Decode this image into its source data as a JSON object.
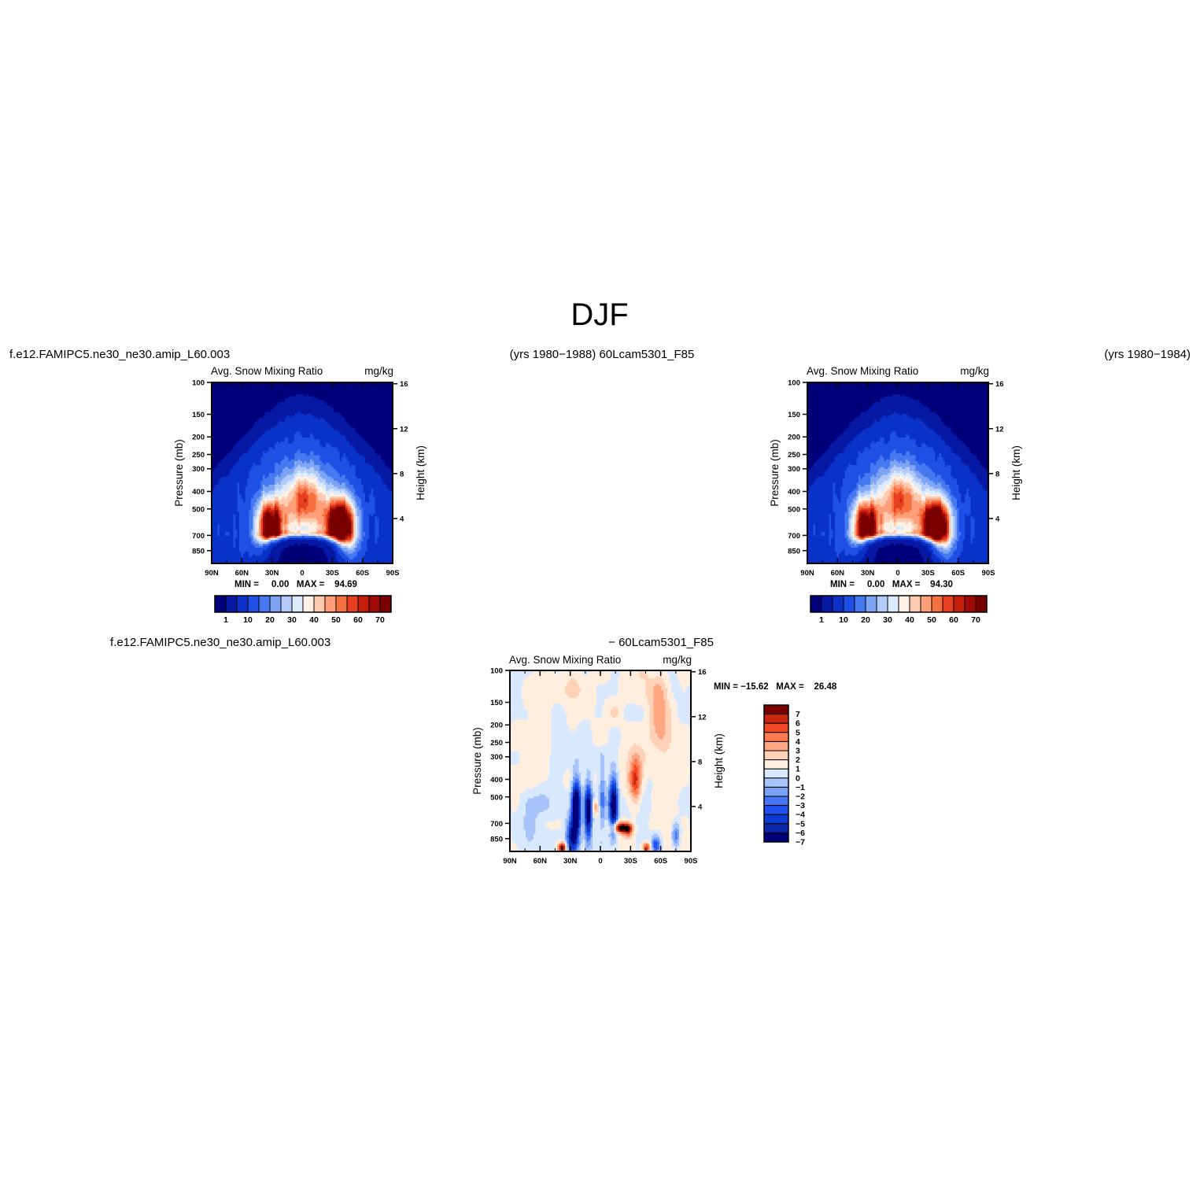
{
  "figure_title": "DJF",
  "header": {
    "left_case": "f.e12.FAMIPC5.ne30_ne30.amip_L60.003",
    "center_text": "(yrs 1980−1988)  60Lcam5301_F85",
    "right_text": "(yrs 1980−1984)",
    "diff_case_left": "f.e12.FAMIPC5.ne30_ne30.amip_L60.003",
    "diff_case_right": "− 60Lcam5301_F85"
  },
  "colors": {
    "panel_palette": [
      "#00007a",
      "#0519a5",
      "#0a32c8",
      "#1e50e6",
      "#4678f0",
      "#7ea4f5",
      "#b3cbfa",
      "#dceafe",
      "#fff1e3",
      "#ffcbb0",
      "#ff9e78",
      "#f77040",
      "#e64020",
      "#c81e0c",
      "#a00a06",
      "#7a0000"
    ],
    "diff_palette": [
      "#00007a",
      "#0a28a8",
      "#0a3cd2",
      "#2050f0",
      "#4676f4",
      "#7aa2f6",
      "#a8c4fa",
      "#d8e8fe",
      "#ffeedd",
      "#ffd2b8",
      "#ffa682",
      "#ff7a50",
      "#f04a24",
      "#c82810",
      "#7a0000"
    ]
  },
  "chart_data": [
    {
      "type": "heatmap",
      "panel": "left",
      "title": "Avg. Snow Mixing Ratio",
      "units": "mg/kg",
      "x_ticks": [
        "90N",
        "60N",
        "30N",
        "0",
        "30S",
        "60S",
        "90S"
      ],
      "y_ticks": [
        "100",
        "150",
        "200",
        "250",
        "300",
        "400",
        "500",
        "700",
        "850"
      ],
      "y_ticks_right": [
        "16",
        "12",
        "8",
        "4"
      ],
      "ylabel": "Pressure (mb)",
      "ylabel_right": "Height (km)",
      "ylim": [
        1000,
        100
      ],
      "y_scale": "log",
      "stats_label": "MIN =     0.00   MAX =    94.69",
      "min": 0.0,
      "max": 94.69,
      "colorbar_labels": [
        "1",
        "10",
        "20",
        "30",
        "40",
        "50",
        "60",
        "70"
      ],
      "colorbar_levels": [
        1,
        5,
        10,
        15,
        20,
        25,
        30,
        35,
        40,
        45,
        50,
        55,
        60,
        65,
        70
      ],
      "features": {
        "nh_peak": {
          "lat": 32,
          "p": 620,
          "value": 72
        },
        "sh_peak": {
          "lat": -38,
          "p": 620,
          "value": 94
        },
        "melting_layer_band_p": 690
      }
    },
    {
      "type": "heatmap",
      "panel": "right",
      "title": "Avg. Snow Mixing Ratio",
      "units": "mg/kg",
      "x_ticks": [
        "90N",
        "60N",
        "30N",
        "0",
        "30S",
        "60S",
        "90S"
      ],
      "y_ticks": [
        "100",
        "150",
        "200",
        "250",
        "300",
        "400",
        "500",
        "700",
        "850"
      ],
      "y_ticks_right": [
        "16",
        "12",
        "8",
        "4"
      ],
      "ylabel": "Pressure (mb)",
      "ylabel_right": "Height (km)",
      "ylim": [
        1000,
        100
      ],
      "y_scale": "log",
      "stats_label": "MIN =     0.00   MAX =    94.30",
      "min": 0.0,
      "max": 94.3,
      "colorbar_labels": [
        "1",
        "10",
        "20",
        "30",
        "40",
        "50",
        "60",
        "70"
      ],
      "colorbar_levels": [
        1,
        5,
        10,
        15,
        20,
        25,
        30,
        35,
        40,
        45,
        50,
        55,
        60,
        65,
        70
      ],
      "features": {
        "nh_peak": {
          "lat": 32,
          "p": 620,
          "value": 70
        },
        "sh_peak": {
          "lat": -38,
          "p": 620,
          "value": 94
        },
        "melting_layer_band_p": 690
      }
    },
    {
      "type": "heatmap",
      "panel": "difference",
      "title": "Avg. Snow Mixing Ratio",
      "units": "mg/kg",
      "x_ticks": [
        "90N",
        "60N",
        "30N",
        "0",
        "30S",
        "60S",
        "90S"
      ],
      "y_ticks": [
        "100",
        "150",
        "200",
        "250",
        "300",
        "400",
        "500",
        "700",
        "850"
      ],
      "y_ticks_right": [
        "16",
        "12",
        "8",
        "4"
      ],
      "ylabel": "Pressure (mb)",
      "ylabel_right": "Height (km)",
      "ylim": [
        1000,
        100
      ],
      "y_scale": "log",
      "stats_label": "MIN = −15.62   MAX =    26.48",
      "min": -15.62,
      "max": 26.48,
      "colorbar_labels": [
        "7",
        "6",
        "5",
        "4",
        "3",
        "2",
        "1",
        "0",
        "−1",
        "−2",
        "−3",
        "−4",
        "−5",
        "−6",
        "−7"
      ],
      "colorbar_levels": [
        -7,
        -6,
        -5,
        -4,
        -3,
        -2,
        -1,
        0,
        1,
        2,
        3,
        4,
        5,
        6,
        7
      ]
    }
  ]
}
